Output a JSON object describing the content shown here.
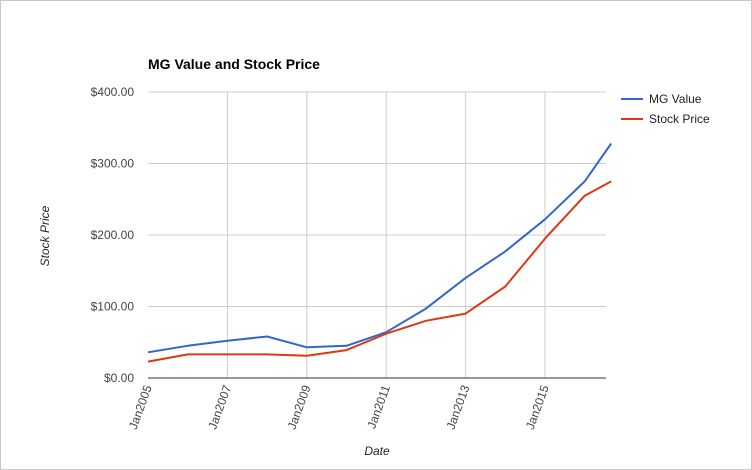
{
  "chart_data": {
    "type": "line",
    "title": "MG Value and Stock Price",
    "xlabel": "Date",
    "ylabel": "Stock Price",
    "x": [
      "2005-01",
      "2006-01",
      "2007-01",
      "2008-01",
      "2009-01",
      "2010-01",
      "2011-01",
      "2012-01",
      "2013-01",
      "2014-01",
      "2015-01",
      "2016-01",
      "2016-09"
    ],
    "x_tick_labels": [
      "Jan2005",
      "Jan2007",
      "Jan2009",
      "Jan2011",
      "Jan2013",
      "Jan2015"
    ],
    "y_tick_labels": [
      "$0.00",
      "$100.00",
      "$200.00",
      "$300.00",
      "$400.00"
    ],
    "ylim": [
      0,
      400
    ],
    "grid": true,
    "legend_position": "right",
    "series": [
      {
        "name": "MG Value",
        "color": "#3366cc",
        "values": [
          36,
          45,
          52,
          58,
          43,
          45,
          64,
          97,
          140,
          177,
          222,
          275,
          328
        ]
      },
      {
        "name": "Stock Price",
        "color": "#dc3912",
        "values": [
          23,
          33,
          33,
          33,
          31,
          39,
          62,
          80,
          90,
          128,
          195,
          255,
          275
        ]
      }
    ]
  }
}
